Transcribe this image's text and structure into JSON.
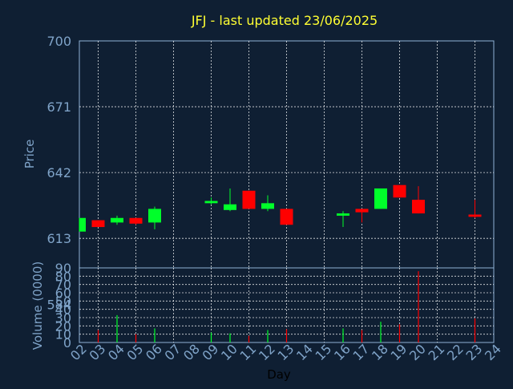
{
  "chart_data": {
    "type": "candlestick",
    "title": "JFJ - last updated 23/06/2025",
    "xlabel": "Day",
    "price_ylabel": "Price",
    "volume_ylabel": "Volume (0000)",
    "price_ylim": [
      600,
      700
    ],
    "price_ticks": [
      613,
      584,
      642,
      671,
      700
    ],
    "volume_ylim": [
      0,
      90
    ],
    "volume_ticks": [
      0,
      10,
      20,
      30,
      40,
      50,
      60,
      70,
      80,
      90
    ],
    "x_ticks": [
      "02",
      "03",
      "04",
      "05",
      "06",
      "07",
      "08",
      "09",
      "10",
      "11",
      "12",
      "13",
      "14",
      "15",
      "16",
      "17",
      "18",
      "19",
      "20",
      "21",
      "22",
      "23",
      "24"
    ],
    "up_color": "#00ff2a",
    "down_color": "#ff0000",
    "candles": [
      {
        "day": "02",
        "open": 616,
        "close": 622,
        "high": 622,
        "low": 616,
        "volume": 0
      },
      {
        "day": "03",
        "open": 621,
        "close": 618,
        "high": 621,
        "low": 618,
        "volume": 15
      },
      {
        "day": "04",
        "open": 620,
        "close": 622,
        "high": 623,
        "low": 619,
        "volume": 33
      },
      {
        "day": "05",
        "open": 622,
        "close": 619.5,
        "high": 622,
        "low": 619,
        "volume": 10
      },
      {
        "day": "06",
        "open": 620,
        "close": 626,
        "high": 627,
        "low": 617,
        "volume": 17
      },
      {
        "day": "09",
        "open": 628.5,
        "close": 629.5,
        "high": 631,
        "low": 628,
        "volume": 12
      },
      {
        "day": "10",
        "open": 625.5,
        "close": 628,
        "high": 635,
        "low": 625,
        "volume": 11
      },
      {
        "day": "11",
        "open": 634,
        "close": 626,
        "high": 634,
        "low": 626,
        "volume": 8
      },
      {
        "day": "12",
        "open": 626,
        "close": 628.5,
        "high": 632,
        "low": 625,
        "volume": 15
      },
      {
        "day": "13",
        "open": 626,
        "close": 619,
        "high": 626,
        "low": 619,
        "volume": 16
      },
      {
        "day": "16",
        "open": 623,
        "close": 624,
        "high": 625,
        "low": 618,
        "volume": 17
      },
      {
        "day": "17",
        "open": 626,
        "close": 624.5,
        "high": 626,
        "low": 620,
        "volume": 15
      },
      {
        "day": "18",
        "open": 626,
        "close": 635,
        "high": 635,
        "low": 626,
        "volume": 25
      },
      {
        "day": "19",
        "open": 636.5,
        "close": 631,
        "high": 636.5,
        "low": 631,
        "volume": 22
      },
      {
        "day": "20",
        "open": 630,
        "close": 624,
        "high": 636,
        "low": 624,
        "volume": 86
      },
      {
        "day": "23",
        "open": 623.5,
        "close": 622.5,
        "high": 630,
        "low": 622,
        "volume": 29
      }
    ]
  }
}
